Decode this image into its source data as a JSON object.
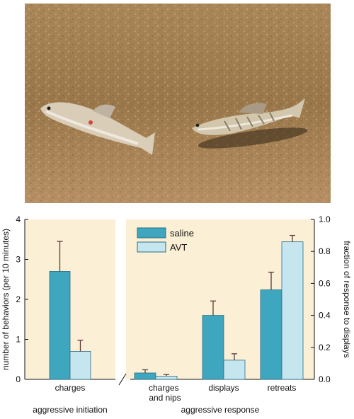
{
  "colors": {
    "panel_bg": "#fbefd6",
    "saline": "#3fa6bf",
    "avt": "#c5e5ef",
    "bar_edge": "#2c6d80",
    "error_bar": "#5d3a3a",
    "sand": "#9c7a4e",
    "fish_body": "#d9cdb8",
    "fish_belly": "#efe8dc"
  },
  "photo": {
    "subject": "two-fish-on-sand-photo"
  },
  "chart_data": [
    {
      "type": "bar",
      "panel": "aggressive-initiation",
      "categories": [
        "charges"
      ],
      "series": [
        {
          "name": "saline",
          "values": [
            2.7
          ],
          "errors": [
            0.75
          ]
        },
        {
          "name": "AVT",
          "values": [
            0.7
          ],
          "errors": [
            0.28
          ]
        }
      ],
      "ylabel": "number of behaviors (per 10 minutes)",
      "ylim": [
        0,
        4
      ],
      "yticks": [
        "0",
        "1",
        "2",
        "3",
        "4"
      ],
      "xlabel": "aggressive initiation",
      "grid": false
    },
    {
      "type": "bar",
      "panel": "aggressive-response",
      "categories": [
        "charges and nips",
        "displays",
        "retreats"
      ],
      "series": [
        {
          "name": "saline",
          "values": [
            0.04,
            0.4,
            0.56
          ],
          "errors": [
            0.02,
            0.09,
            0.11
          ]
        },
        {
          "name": "AVT",
          "values": [
            0.02,
            0.12,
            0.86
          ],
          "errors": [
            0.01,
            0.04,
            0.04
          ]
        }
      ],
      "ylabel": "fraction of response to displays",
      "ylim": [
        0,
        1
      ],
      "yticks": [
        "0.0",
        "0.2",
        "0.4",
        "0.6",
        "0.8",
        "1.0"
      ],
      "xlabel": "aggressive response",
      "legend": {
        "position": "top-left",
        "entries": [
          "saline",
          "AVT"
        ]
      },
      "grid": false
    }
  ]
}
